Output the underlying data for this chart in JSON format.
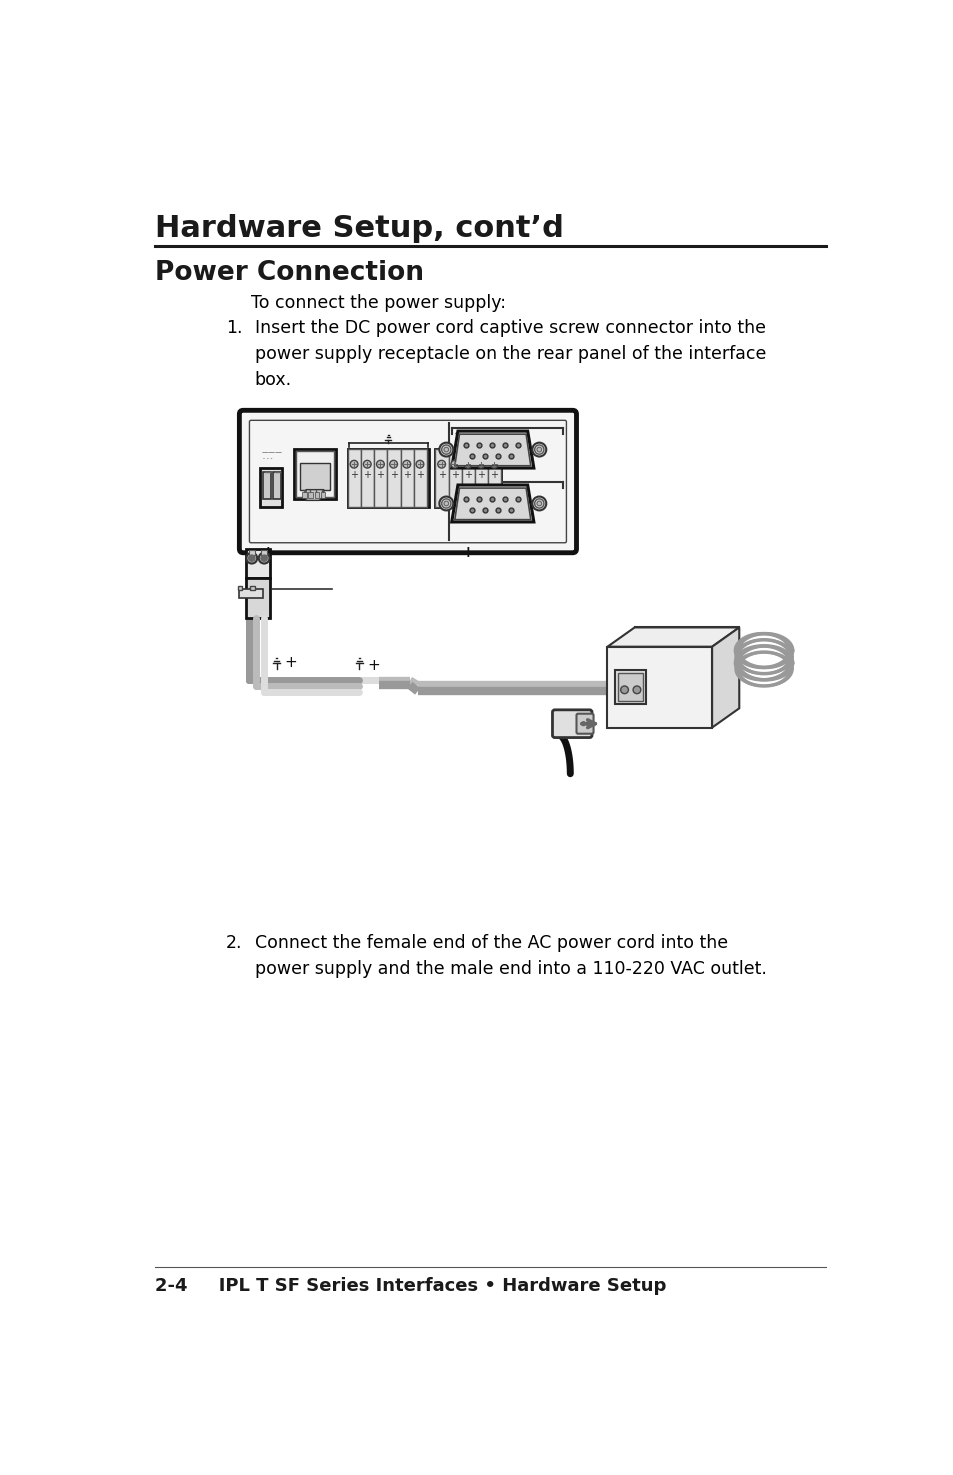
{
  "page_title": "Hardware Setup, cont’d",
  "section_title": "Power Connection",
  "intro_text": "To connect the power supply:",
  "step1_num": "1.",
  "step1_text": "Insert the DC power cord captive screw connector into the\npower supply receptacle on the rear panel of the interface\nbox.",
  "step2_num": "2.",
  "step2_text": "Connect the female end of the AC power cord into the\npower supply and the male end into a 110-220 VAC outlet.",
  "footer_text": "2-4     IPL T SF Series Interfaces • Hardware Setup",
  "bg_color": "#ffffff",
  "text_color": "#000000",
  "title_color": "#1a1a1a",
  "line_color": "#1a1a1a"
}
